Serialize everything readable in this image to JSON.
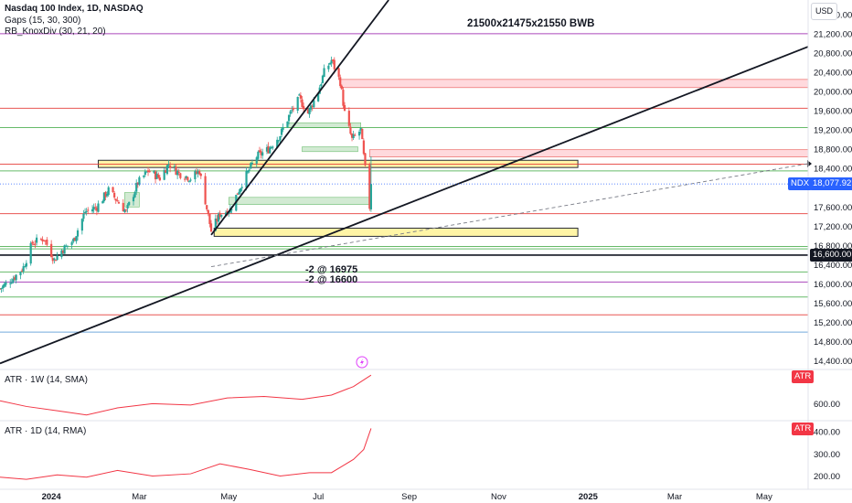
{
  "header": {
    "title": "Nasdaq 100 Index, 1D, NASDAQ",
    "indicator_gaps": "Gaps (15, 30, 300)",
    "indicator_knoxdiv": "RB_KnoxDiv (30, 21, 20)",
    "currency": "USD"
  },
  "annotations": {
    "top_note": "21500x21475x21550 BWB",
    "level_note_1": "-2 @ 16975",
    "level_note_2": "-2 @ 16600"
  },
  "price_tags": {
    "symbol": "NDX",
    "last_price": "18,077.92",
    "marked_level": "16,600.00"
  },
  "colors": {
    "up": "#26a69a",
    "down": "#ef5350",
    "red_level": "#e53935",
    "green_level": "#4caf50",
    "purple_level": "#9c27b0",
    "zone_yellow": "#fff59d",
    "zone_green": "#c8e6c9",
    "zone_red": "#ffcdd2",
    "ndx_tag": "#2962ff",
    "atr_tag": "#f23645"
  },
  "chart_data": [
    {
      "type": "candlestick",
      "y_ticks": [
        "21,600.00",
        "21,200.00",
        "20,800.00",
        "20,400.00",
        "20,000.00",
        "19,600.00",
        "19,200.00",
        "18,800.00",
        "18,400.00",
        "17,600.00",
        "17,200.00",
        "16,800.00",
        "16,400.00",
        "16,000.00",
        "15,600.00",
        "15,200.00",
        "14,800.00",
        "14,400.00"
      ],
      "ylim": [
        14300,
        21900
      ],
      "x_labels": [
        "2024",
        "Mar",
        "May",
        "Jul",
        "Sep",
        "Nov",
        "2025",
        "Mar",
        "May"
      ],
      "close_path": [
        [
          "2023-11-27",
          15900
        ],
        [
          "2023-12-01",
          16000
        ],
        [
          "2023-12-07",
          16150
        ],
        [
          "2023-12-13",
          16350
        ],
        [
          "2023-12-19",
          16850
        ],
        [
          "2023-12-27",
          16950
        ],
        [
          "2024-01-03",
          16500
        ],
        [
          "2024-01-08",
          16700
        ],
        [
          "2024-01-16",
          16900
        ],
        [
          "2024-01-24",
          17500
        ],
        [
          "2024-02-01",
          17600
        ],
        [
          "2024-02-09",
          17950
        ],
        [
          "2024-02-21",
          17500
        ],
        [
          "2024-02-29",
          18100
        ],
        [
          "2024-03-07",
          18350
        ],
        [
          "2024-03-15",
          18200
        ],
        [
          "2024-03-21",
          18500
        ],
        [
          "2024-03-28",
          18300
        ],
        [
          "2024-04-05",
          18200
        ],
        [
          "2024-04-11",
          18350
        ],
        [
          "2024-04-19",
          17100
        ],
        [
          "2024-04-25",
          17450
        ],
        [
          "2024-05-02",
          17550
        ],
        [
          "2024-05-10",
          18100
        ],
        [
          "2024-05-20",
          18650
        ],
        [
          "2024-05-28",
          18800
        ],
        [
          "2024-06-05",
          19100
        ],
        [
          "2024-06-12",
          19550
        ],
        [
          "2024-06-18",
          19850
        ],
        [
          "2024-06-24",
          19550
        ],
        [
          "2024-07-01",
          20000
        ],
        [
          "2024-07-05",
          20400
        ],
        [
          "2024-07-10",
          20650
        ],
        [
          "2024-07-16",
          20200
        ],
        [
          "2024-07-19",
          19550
        ],
        [
          "2024-07-24",
          19000
        ],
        [
          "2024-07-30",
          19200
        ],
        [
          "2024-08-01",
          18650
        ],
        [
          "2024-08-05",
          17600
        ],
        [
          "2024-08-06",
          18077.92
        ]
      ],
      "horizontal_levels": [
        {
          "price": 21200,
          "color": "purple"
        },
        {
          "price": 19650,
          "color": "red"
        },
        {
          "price": 19250,
          "color": "green"
        },
        {
          "price": 18490,
          "color": "red"
        },
        {
          "price": 18350,
          "color": "green"
        },
        {
          "price": 17460,
          "color": "red"
        },
        {
          "price": 16780,
          "color": "green"
        },
        {
          "price": 16730,
          "color": "green"
        },
        {
          "price": 16600,
          "color": "black"
        },
        {
          "price": 16250,
          "color": "green"
        },
        {
          "price": 16040,
          "color": "purple"
        },
        {
          "price": 15730,
          "color": "green"
        },
        {
          "price": 15360,
          "color": "red"
        },
        {
          "price": 15000,
          "color": "blue"
        }
      ],
      "zones": [
        {
          "kind": "yellow",
          "from": "2024-02-02",
          "to": "2024-12-25",
          "low": 18420,
          "high": 18570
        },
        {
          "kind": "yellow",
          "from": "2024-04-21",
          "to": "2024-12-25",
          "low": 16990,
          "high": 17160
        },
        {
          "kind": "red",
          "from": "2024-07-16",
          "to": "2025-05-31",
          "low": 20080,
          "high": 20250
        },
        {
          "kind": "red",
          "from": "2024-08-05",
          "to": "2025-05-31",
          "low": 18640,
          "high": 18790
        }
      ],
      "trendlines": [
        {
          "from": [
            "2023-11-27",
            14350
          ],
          "to": [
            "2025-05-31",
            20930
          ]
        },
        {
          "from": [
            "2024-04-19",
            17020
          ],
          "to": [
            "2024-08-18",
            21900
          ]
        }
      ],
      "projection_line": {
        "from": [
          "2024-04-19",
          16360
        ],
        "to": [
          "2025-05-31",
          18500
        ]
      }
    },
    {
      "type": "line",
      "title": "ATR · 1W (14, SMA)",
      "y_ticks": [
        "600.00"
      ],
      "last_value_tag": "ATR",
      "points": [
        [
          "2023-11-27",
          610
        ],
        [
          "2023-12-15",
          590
        ],
        [
          "2024-01-05",
          575
        ],
        [
          "2024-01-25",
          560
        ],
        [
          "2024-02-15",
          585
        ],
        [
          "2024-03-10",
          600
        ],
        [
          "2024-04-05",
          595
        ],
        [
          "2024-04-30",
          620
        ],
        [
          "2024-05-25",
          625
        ],
        [
          "2024-06-20",
          615
        ],
        [
          "2024-07-10",
          630
        ],
        [
          "2024-07-25",
          660
        ],
        [
          "2024-08-06",
          700
        ]
      ]
    },
    {
      "type": "line",
      "title": "ATR · 1D (14, RMA)",
      "y_ticks": [
        "400.00",
        "300.00",
        "200.00"
      ],
      "last_value_tag": "ATR",
      "points": [
        [
          "2023-11-27",
          195
        ],
        [
          "2023-12-15",
          185
        ],
        [
          "2024-01-05",
          205
        ],
        [
          "2024-01-25",
          195
        ],
        [
          "2024-02-15",
          225
        ],
        [
          "2024-03-10",
          200
        ],
        [
          "2024-04-05",
          210
        ],
        [
          "2024-04-25",
          255
        ],
        [
          "2024-05-15",
          230
        ],
        [
          "2024-06-05",
          200
        ],
        [
          "2024-06-25",
          215
        ],
        [
          "2024-07-10",
          215
        ],
        [
          "2024-07-25",
          275
        ],
        [
          "2024-08-01",
          320
        ],
        [
          "2024-08-06",
          415
        ]
      ]
    }
  ]
}
